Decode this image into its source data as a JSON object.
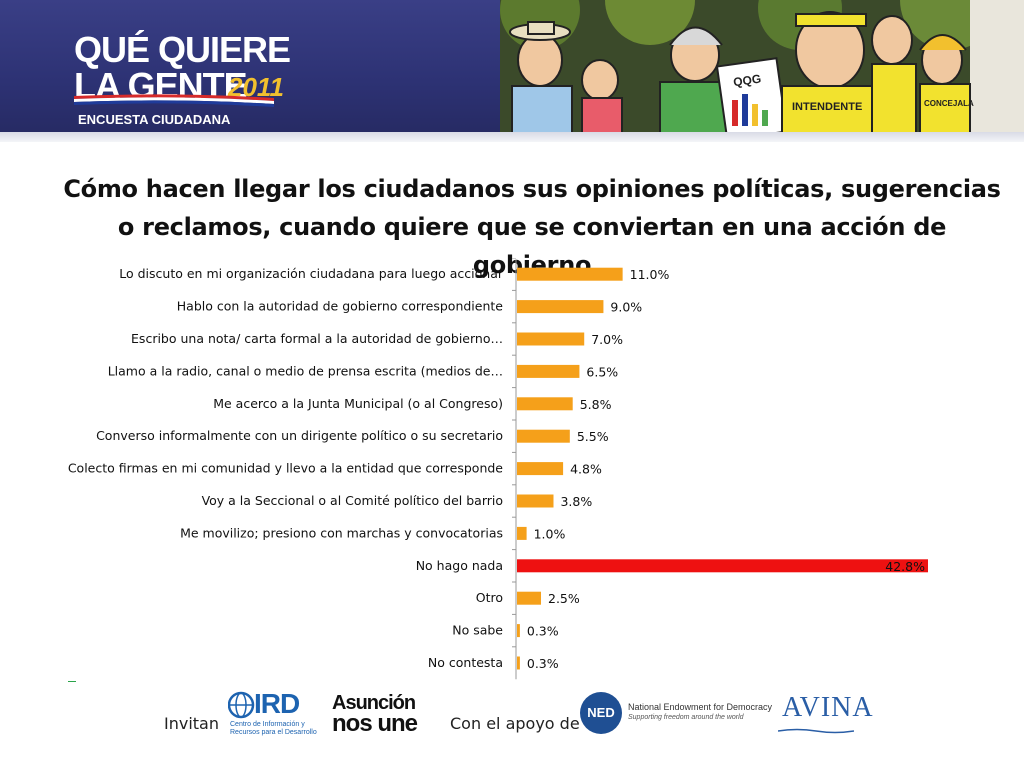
{
  "header": {
    "logo_line1": "QUÉ QUIERE",
    "logo_line2": "LA GENTE",
    "logo_year": "2011",
    "logo_sub": "ENCUESTA CIUDADANA",
    "cartoon_sign_1": "QQG",
    "cartoon_sign_2": "INTENDENTE",
    "cartoon_sign_3": "CONCEJALA"
  },
  "title": "Cómo hacen llegar los ciudadanos sus opiniones políticas, sugerencias o reclamos, cuando quiere que se conviertan en una acción de gobierno",
  "colors": {
    "bar_default": "#F5A01A",
    "bar_highlight": "#EE1111",
    "banner": "#2d3274",
    "axis": "#999999"
  },
  "chart_data": {
    "type": "bar",
    "orientation": "horizontal",
    "title": "Cómo hacen llegar los ciudadanos sus opiniones políticas, sugerencias o reclamos, cuando quiere que se conviertan en una acción de gobierno",
    "categories": [
      "Lo discuto en mi organización ciudadana para luego accionar",
      "Hablo con la autoridad de gobierno correspondiente",
      "Escribo una nota/ carta formal a la autoridad de gobierno…",
      "Llamo a la radio, canal o medio de prensa escrita (medios de…",
      "Me acerco a la Junta Municipal (o al Congreso)",
      "Converso informalmente con un dirigente político o su secretario",
      "Colecto firmas en mi comunidad y llevo a la entidad que corresponde",
      "Voy a la Seccional o al Comité político del barrio",
      "Me movilizo; presiono con marchas y convocatorias",
      "No hago nada",
      "Otro",
      "No sabe",
      "No contesta"
    ],
    "values": [
      11.0,
      9.0,
      7.0,
      6.5,
      5.8,
      5.5,
      4.8,
      3.8,
      1.0,
      42.8,
      2.5,
      0.3,
      0.3
    ],
    "value_labels": [
      "11.0%",
      "9.0%",
      "7.0%",
      "6.5%",
      "5.8%",
      "5.5%",
      "4.8%",
      "3.8%",
      "1.0%",
      "42.8%",
      "2.5%",
      "0.3%",
      "0.3%"
    ],
    "highlight_index": 9,
    "xlim": [
      0,
      42.8
    ],
    "xlabel": "",
    "ylabel": "",
    "grid": false,
    "legend": "none"
  },
  "footer": {
    "invitan": "Invitan",
    "con_apoyo": "Con el apoyo de",
    "ird": "IRD",
    "ird_sub": "Centro de Información y Recursos para el Desarrollo",
    "asuncion_1": "Asunción",
    "asuncion_2": "nos une",
    "ned": "NED",
    "ned_name": "National Endowment for Democracy",
    "ned_tag": "Supporting freedom around the world",
    "avina": "AVINA"
  }
}
